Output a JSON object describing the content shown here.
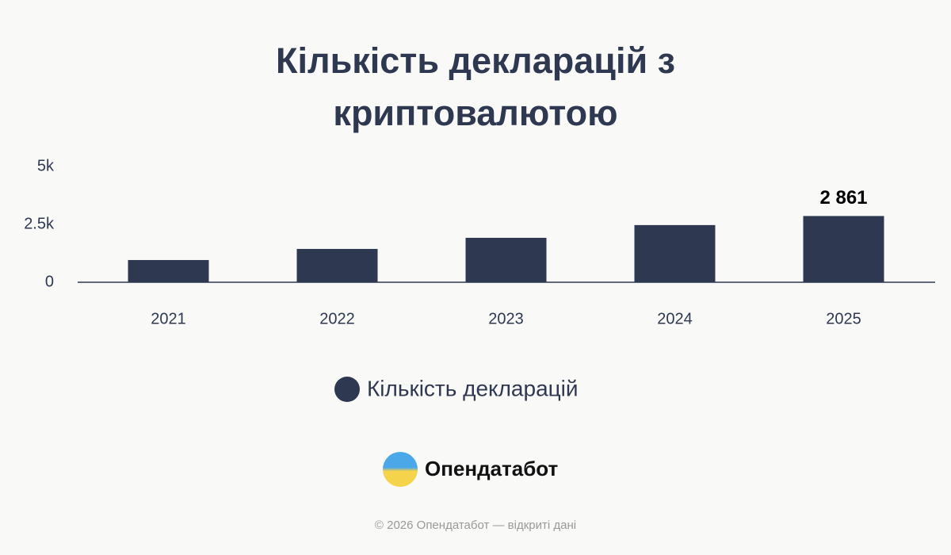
{
  "chart_data": {
    "type": "bar",
    "title": "Кількість декларацій з криптовалютою",
    "categories": [
      "2021",
      "2022",
      "2023",
      "2024",
      "2025"
    ],
    "series": [
      {
        "name": "Кількість декларацій",
        "color": "#2e3850",
        "values": [
          960,
          1440,
          1920,
          2470,
          2861
        ],
        "value_labels": [
          null,
          null,
          null,
          null,
          "2 861"
        ]
      }
    ],
    "ylim": [
      0,
      5000
    ],
    "yticks": [
      0,
      {
        "value": 2500,
        "label": "2.5k"
      },
      {
        "value": 5000,
        "label": "5k"
      }
    ],
    "grid": false
  },
  "brand": {
    "name": "Опендатабот",
    "footer": "© 2026 Опендатабот — відкриті дані"
  }
}
